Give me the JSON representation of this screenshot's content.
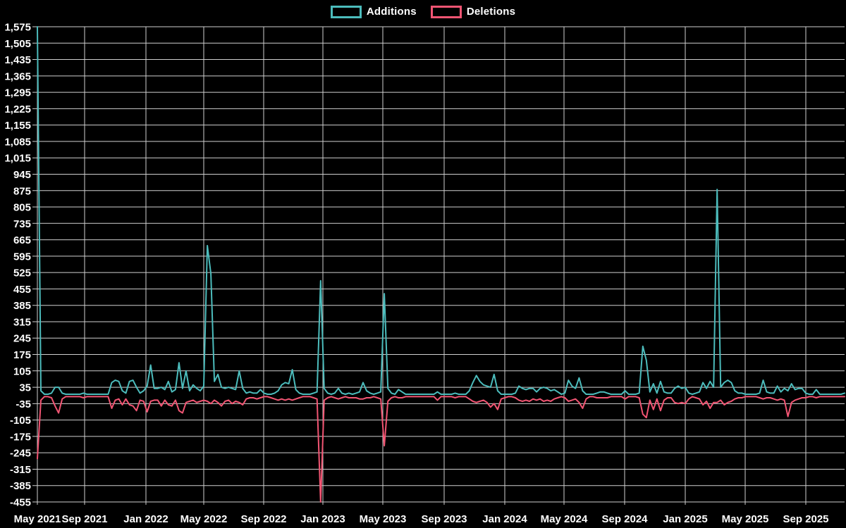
{
  "legend": {
    "additions_label": "Additions",
    "deletions_label": "Deletions"
  },
  "chart_data": {
    "type": "line",
    "title": "",
    "xlabel": "",
    "ylabel": "",
    "x_unit": "week",
    "grid": true,
    "legend_position": "top-center",
    "ylim": [
      -455,
      1575
    ],
    "y_tick_step": 70,
    "y_tick_values": [
      1575,
      1505,
      1435,
      1365,
      1295,
      1225,
      1155,
      1085,
      1015,
      945,
      875,
      805,
      735,
      665,
      595,
      525,
      455,
      385,
      315,
      245,
      175,
      105,
      35,
      -35,
      -105,
      -175,
      -245,
      -315,
      -385,
      -455
    ],
    "x_tick_labels": [
      "May 2021",
      "Sep 2021",
      "Jan 2022",
      "May 2022",
      "Sep 2022",
      "Jan 2023",
      "May 2023",
      "Sep 2023",
      "Jan 2024",
      "May 2024",
      "Sep 2024",
      "Jan 2025",
      "May 2025",
      "Sep 2025"
    ],
    "colors": {
      "background": "#000000",
      "grid": "#cfcfcf",
      "text": "#ffffff",
      "additions": "#4cbcbc",
      "deletions": "#f25573"
    },
    "series": [
      {
        "name": "Additions",
        "color": "#4cbcbc",
        "values": [
          1575,
          20,
          5,
          5,
          10,
          35,
          35,
          10,
          5,
          5,
          5,
          5,
          5,
          10,
          5,
          5,
          5,
          5,
          5,
          5,
          5,
          55,
          65,
          60,
          20,
          10,
          60,
          65,
          35,
          10,
          20,
          40,
          130,
          30,
          30,
          35,
          25,
          60,
          15,
          25,
          140,
          30,
          105,
          20,
          45,
          30,
          20,
          40,
          640,
          520,
          60,
          90,
          35,
          30,
          35,
          30,
          25,
          105,
          30,
          10,
          15,
          10,
          10,
          25,
          10,
          5,
          5,
          10,
          20,
          45,
          55,
          50,
          110,
          25,
          10,
          5,
          5,
          5,
          10,
          15,
          490,
          30,
          10,
          5,
          10,
          30,
          10,
          5,
          10,
          5,
          10,
          15,
          55,
          20,
          10,
          5,
          10,
          15,
          435,
          30,
          10,
          5,
          25,
          15,
          5,
          5,
          5,
          5,
          5,
          5,
          5,
          5,
          5,
          15,
          5,
          5,
          5,
          5,
          10,
          5,
          5,
          5,
          20,
          55,
          85,
          60,
          45,
          40,
          35,
          90,
          20,
          5,
          5,
          5,
          5,
          10,
          40,
          30,
          25,
          30,
          30,
          15,
          30,
          35,
          30,
          20,
          25,
          15,
          5,
          10,
          65,
          40,
          30,
          75,
          20,
          5,
          5,
          5,
          10,
          15,
          15,
          10,
          5,
          5,
          5,
          5,
          20,
          5,
          5,
          5,
          10,
          210,
          150,
          15,
          50,
          10,
          60,
          15,
          10,
          10,
          30,
          40,
          30,
          35,
          10,
          5,
          10,
          15,
          55,
          30,
          60,
          35,
          880,
          35,
          55,
          65,
          55,
          20,
          10,
          10,
          5,
          5,
          5,
          5,
          10,
          65,
          15,
          10,
          10,
          40,
          15,
          30,
          20,
          50,
          25,
          30,
          30,
          10,
          5,
          5,
          25,
          5,
          5,
          5,
          5,
          5,
          5,
          5,
          10
        ]
      },
      {
        "name": "Deletions",
        "color": "#f25573",
        "values": [
          -270,
          -20,
          -5,
          -5,
          -10,
          -45,
          -75,
          -15,
          -5,
          -5,
          -5,
          -5,
          -5,
          -10,
          -5,
          -5,
          -5,
          -5,
          -5,
          -5,
          -5,
          -55,
          -20,
          -15,
          -40,
          -15,
          -40,
          -45,
          -65,
          -20,
          -25,
          -70,
          -25,
          -20,
          -20,
          -45,
          -20,
          -40,
          -45,
          -20,
          -65,
          -75,
          -30,
          -25,
          -20,
          -30,
          -25,
          -20,
          -25,
          -35,
          -20,
          -30,
          -45,
          -25,
          -20,
          -35,
          -25,
          -30,
          -40,
          -15,
          -10,
          -10,
          -15,
          -10,
          -5,
          -5,
          -10,
          -15,
          -20,
          -15,
          -20,
          -15,
          -20,
          -15,
          -10,
          -5,
          -5,
          -5,
          -10,
          -15,
          -455,
          -20,
          -10,
          -5,
          -10,
          -15,
          -10,
          -5,
          -10,
          -10,
          -10,
          -15,
          -15,
          -10,
          -10,
          -5,
          -10,
          -15,
          -215,
          -25,
          -10,
          -5,
          -10,
          -10,
          -5,
          -5,
          -5,
          -5,
          -5,
          -5,
          -5,
          -5,
          -5,
          -20,
          -5,
          -5,
          -5,
          -5,
          -10,
          -5,
          -5,
          -5,
          -15,
          -25,
          -30,
          -25,
          -20,
          -30,
          -50,
          -35,
          -60,
          -15,
          -10,
          -5,
          -5,
          -10,
          -20,
          -25,
          -20,
          -25,
          -15,
          -20,
          -15,
          -25,
          -20,
          -25,
          -15,
          -10,
          -5,
          -10,
          -25,
          -20,
          -15,
          -30,
          -55,
          -15,
          -5,
          -5,
          -10,
          -10,
          -10,
          -10,
          -5,
          -5,
          -5,
          -5,
          -15,
          -5,
          -5,
          -5,
          -10,
          -80,
          -95,
          -20,
          -60,
          -15,
          -65,
          -20,
          -10,
          -10,
          -30,
          -35,
          -30,
          -35,
          -15,
          -5,
          -10,
          -15,
          -40,
          -25,
          -55,
          -30,
          -30,
          -20,
          -40,
          -30,
          -25,
          -15,
          -10,
          -10,
          -5,
          -5,
          -5,
          -5,
          -10,
          -15,
          -10,
          -10,
          -15,
          -20,
          -15,
          -20,
          -90,
          -30,
          -20,
          -15,
          -10,
          -10,
          -5,
          -5,
          -10,
          -5,
          -5,
          -5,
          -5,
          -5,
          -5,
          -5,
          -5
        ]
      }
    ]
  }
}
